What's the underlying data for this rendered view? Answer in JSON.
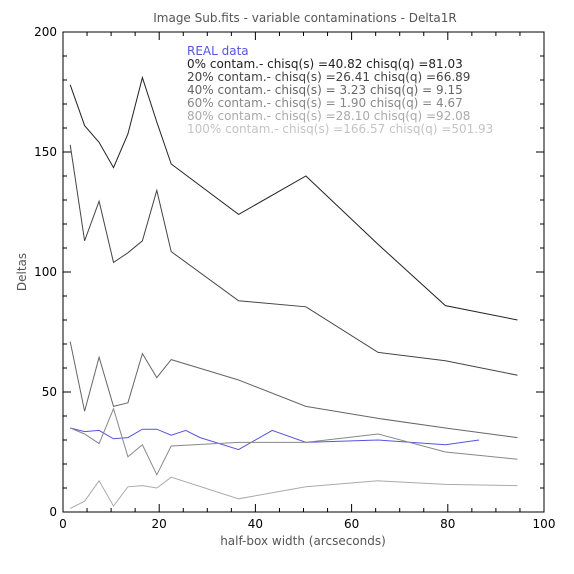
{
  "chart_data": {
    "type": "line",
    "title": "Image Sub.fits - variable contaminations - Delta1R",
    "xlabel": "half-box width (arcseconds)",
    "ylabel": "Deltas",
    "xlim": [
      0,
      100
    ],
    "ylim": [
      0,
      200
    ],
    "xticks": [
      "0",
      "20",
      "40",
      "60",
      "80",
      "100"
    ],
    "yticks": [
      "0",
      "50",
      "100",
      "150",
      "200"
    ],
    "grid": false,
    "legend_position": "top-center",
    "series": [
      {
        "name": "REAL data",
        "color": "#5555dd",
        "x": [
          1.5,
          4.5,
          7.5,
          10.5,
          13.5,
          16.5,
          19.5,
          22.5,
          25.5,
          28.5,
          36.5,
          43.5,
          50.5,
          65.5,
          79.5,
          86.5
        ],
        "y": [
          35,
          33.5,
          34,
          30.5,
          31,
          34.5,
          34.5,
          32,
          34,
          31,
          26,
          34,
          29,
          30,
          28,
          30
        ]
      },
      {
        "name": "0% contam.- chisq(s) =40.82 chisq(q) =81.03",
        "color": "#222222",
        "x": [
          1.5,
          4.5,
          7.5,
          10.5,
          13.5,
          16.5,
          19.5,
          22.5,
          36.5,
          50.5,
          65.5,
          79.5,
          94.5
        ],
        "y": [
          178,
          161,
          154,
          143.5,
          157.5,
          181,
          162.5,
          145,
          124,
          140,
          111.5,
          86,
          80
        ]
      },
      {
        "name": "20% contam.- chisq(s) =26.41 chisq(q) =66.89",
        "color": "#444444",
        "x": [
          1.5,
          4.5,
          7.5,
          10.5,
          13.5,
          16.5,
          19.5,
          22.5,
          36.5,
          50.5,
          65.5,
          79.5,
          94.5
        ],
        "y": [
          153,
          113,
          129.5,
          104,
          108,
          113,
          134,
          108.5,
          88,
          85.5,
          66.5,
          63,
          57
        ]
      },
      {
        "name": "40% contam.- chisq(s) = 3.23 chisq(q) = 9.15",
        "color": "#666666",
        "x": [
          1.5,
          4.5,
          7.5,
          10.5,
          13.5,
          16.5,
          19.5,
          22.5,
          36.5,
          50.5,
          65.5,
          79.5,
          94.5
        ],
        "y": [
          71,
          42,
          64.5,
          44,
          45.5,
          66,
          56,
          63.5,
          55,
          44,
          39,
          35,
          31
        ]
      },
      {
        "name": "60% contam.- chisq(s) = 1.90 chisq(q) = 4.67",
        "color": "#888888",
        "x": [
          1.5,
          4.5,
          7.5,
          10.5,
          13.5,
          16.5,
          19.5,
          22.5,
          36.5,
          50.5,
          65.5,
          79.5,
          94.5
        ],
        "y": [
          35,
          32.5,
          28.5,
          43,
          23,
          28,
          15.5,
          27.5,
          29,
          29,
          32.5,
          25,
          22
        ]
      },
      {
        "name": "80% contam.- chisq(s) =28.10 chisq(q) =92.08",
        "color": "#aaaaaa",
        "x": [
          1.5,
          4.5,
          7.5,
          10.5,
          13.5,
          16.5,
          19.5,
          22.5,
          36.5,
          50.5,
          65.5,
          79.5,
          94.5
        ],
        "y": [
          1.5,
          4.5,
          13,
          2.5,
          10.5,
          11,
          10,
          14.5,
          5.5,
          10.5,
          13,
          11.5,
          11
        ]
      },
      {
        "name": "100% contam.- chisq(s) =166.57 chisq(q) =501.93",
        "color": "#c4c4c4",
        "x": [],
        "y": []
      }
    ]
  }
}
